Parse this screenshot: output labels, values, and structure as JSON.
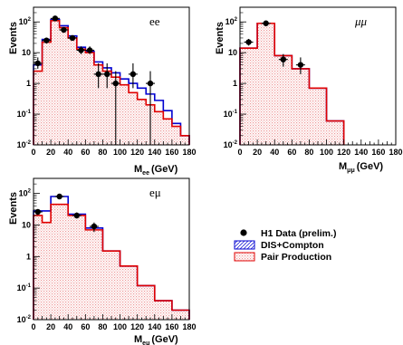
{
  "colors": {
    "pair": "#e00000",
    "pair_fill": "#f6c9c9",
    "dis": "#0000d0",
    "data": "#000000",
    "axis": "#000000"
  },
  "legend": {
    "data_label": "H1 Data (prelim.)",
    "dis_label": "DIS+Compton",
    "pair_label": "Pair Production"
  },
  "chart_data": [
    {
      "type": "histogram",
      "channel": "ee",
      "panel_label": "ee",
      "ylabel": "Events",
      "xlabel_main": "M",
      "xlabel_sub": "ee",
      "xlabel_unit": "(GeV)",
      "xlim": [
        0,
        180
      ],
      "ylim": [
        0.01,
        300
      ],
      "yscale": "log",
      "xticks": [
        0,
        20,
        40,
        60,
        80,
        100,
        120,
        140,
        160,
        180
      ],
      "yticks": [
        {
          "value": 0.01,
          "base": "10",
          "exp": "-2"
        },
        {
          "value": 0.1,
          "base": "10",
          "exp": "-1"
        },
        {
          "value": 1,
          "base": "1",
          "exp": ""
        },
        {
          "value": 10,
          "base": "10",
          "exp": ""
        },
        {
          "value": 100,
          "base": "10",
          "exp": "2"
        }
      ],
      "bin_edges": [
        0,
        10,
        20,
        30,
        40,
        50,
        60,
        70,
        80,
        90,
        100,
        110,
        120,
        130,
        140,
        150,
        160,
        170,
        180
      ],
      "pair_production": [
        2.5,
        22,
        110,
        65,
        30,
        13,
        10,
        4,
        2.5,
        1.6,
        0.9,
        0.5,
        0.3,
        0.2,
        0.12,
        0.07,
        0.04,
        0.02
      ],
      "dis_compton": [
        4,
        27,
        120,
        75,
        35,
        15,
        11,
        5,
        3.2,
        2.2,
        1.4,
        1,
        0.7,
        0.45,
        0.28,
        0.13,
        0.05,
        0.02
      ],
      "data_points": [
        {
          "x": 5,
          "y": 4.5,
          "ylo": 3,
          "yhi": 7
        },
        {
          "x": 15,
          "y": 25,
          "ylo": 20,
          "yhi": 31
        },
        {
          "x": 25,
          "y": 130,
          "ylo": 118,
          "yhi": 143
        },
        {
          "x": 35,
          "y": 55,
          "ylo": 47,
          "yhi": 63
        },
        {
          "x": 45,
          "y": 30,
          "ylo": 25,
          "yhi": 36
        },
        {
          "x": 55,
          "y": 12,
          "ylo": 9,
          "yhi": 16
        },
        {
          "x": 65,
          "y": 12,
          "ylo": 9,
          "yhi": 16
        },
        {
          "x": 75,
          "y": 2,
          "ylo": 0.7,
          "yhi": 4.5
        },
        {
          "x": 85,
          "y": 2,
          "ylo": 0.7,
          "yhi": 4.5
        },
        {
          "x": 95,
          "y": 1,
          "ylo": 0.01,
          "yhi": 2.5
        },
        {
          "x": 115,
          "y": 2,
          "ylo": 0.7,
          "yhi": 4.5
        },
        {
          "x": 135,
          "y": 1,
          "ylo": 0.01,
          "yhi": 2.5
        }
      ]
    },
    {
      "type": "histogram",
      "channel": "mumu",
      "panel_label": "μμ",
      "ylabel": "Events",
      "xlabel_main": "M",
      "xlabel_sub": "μμ",
      "xlabel_unit": "(GeV)",
      "xlim": [
        0,
        180
      ],
      "ylim": [
        0.01,
        300
      ],
      "yscale": "log",
      "xticks": [
        0,
        20,
        40,
        60,
        80,
        100,
        120,
        140,
        160,
        180
      ],
      "yticks": [
        {
          "value": 0.01,
          "base": "10",
          "exp": "-2"
        },
        {
          "value": 0.1,
          "base": "10",
          "exp": "-1"
        },
        {
          "value": 1,
          "base": "1",
          "exp": ""
        },
        {
          "value": 10,
          "base": "10",
          "exp": ""
        },
        {
          "value": 100,
          "base": "10",
          "exp": "2"
        }
      ],
      "bin_edges": [
        0,
        20,
        40,
        60,
        80,
        100,
        120
      ],
      "pair_production": [
        14,
        90,
        8,
        3,
        0.7,
        0.06
      ],
      "dis_compton": [
        14,
        90,
        8,
        3,
        0.7,
        0.06
      ],
      "data_points": [
        {
          "x": 10,
          "y": 22,
          "ylo": 17,
          "yhi": 28
        },
        {
          "x": 30,
          "y": 90,
          "ylo": 80,
          "yhi": 100
        },
        {
          "x": 50,
          "y": 6,
          "ylo": 3.5,
          "yhi": 9
        },
        {
          "x": 70,
          "y": 4,
          "ylo": 2,
          "yhi": 7
        }
      ]
    },
    {
      "type": "histogram",
      "channel": "emu",
      "panel_label": "eμ",
      "ylabel": "Events",
      "xlabel_main": "M",
      "xlabel_sub": "eμ",
      "xlabel_unit": "(GeV)",
      "xlim": [
        0,
        180
      ],
      "ylim": [
        0.01,
        300
      ],
      "yscale": "log",
      "xticks": [
        0,
        20,
        40,
        60,
        80,
        100,
        120,
        140,
        160,
        180
      ],
      "yticks": [
        {
          "value": 0.01,
          "base": "10",
          "exp": "-2"
        },
        {
          "value": 0.1,
          "base": "10",
          "exp": "-1"
        },
        {
          "value": 1,
          "base": "1",
          "exp": ""
        },
        {
          "value": 10,
          "base": "10",
          "exp": ""
        },
        {
          "value": 100,
          "base": "10",
          "exp": "2"
        }
      ],
      "bin_edges": [
        0,
        10,
        20,
        40,
        60,
        80,
        100,
        120,
        140,
        160,
        180
      ],
      "pair_production": [
        20,
        12,
        45,
        20,
        7,
        1.5,
        0.5,
        0.12,
        0.04,
        0.02
      ],
      "dis_compton": [
        28,
        28,
        80,
        22,
        8,
        1.5,
        0.5,
        0.12,
        0.04,
        0.02
      ],
      "data_points": [
        {
          "x": 5,
          "y": 26,
          "ylo": 21,
          "yhi": 31
        },
        {
          "x": 30,
          "y": 80,
          "ylo": 71,
          "yhi": 89
        },
        {
          "x": 50,
          "y": 20,
          "ylo": 16,
          "yhi": 25
        },
        {
          "x": 70,
          "y": 9,
          "ylo": 6,
          "yhi": 12
        }
      ]
    }
  ]
}
